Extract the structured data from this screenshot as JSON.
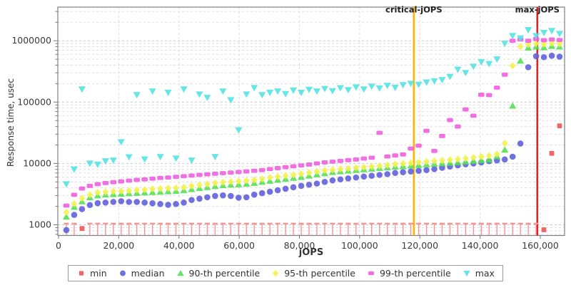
{
  "chart_data": {
    "type": "scatter",
    "xlabel": "jOPS",
    "ylabel": "Response time, usec",
    "y_scale": "log",
    "xlim": [
      0,
      168200
    ],
    "ylim": [
      670,
      3560000
    ],
    "grid": true,
    "legend_position": "bottom",
    "x_ticks": [
      {
        "value": 0,
        "label": "0"
      },
      {
        "value": 20000,
        "label": "20,000"
      },
      {
        "value": 40000,
        "label": "40,000"
      },
      {
        "value": 60000,
        "label": "60,000"
      },
      {
        "value": 80000,
        "label": "80,000"
      },
      {
        "value": 100000,
        "label": "100,000"
      },
      {
        "value": 120000,
        "label": "120,000"
      },
      {
        "value": 140000,
        "label": "140,000"
      },
      {
        "value": 160000,
        "label": "160,000"
      }
    ],
    "y_ticks": [
      {
        "value": 1000,
        "label": "1000"
      },
      {
        "value": 10000,
        "label": "10000"
      },
      {
        "value": 100000,
        "label": "100000"
      },
      {
        "value": 1000000,
        "label": "1000000"
      }
    ],
    "vlines": [
      {
        "name": "critical-jOPS",
        "x": 118000,
        "color": "#ffb400"
      },
      {
        "name": "max-jOPS",
        "x": 159000,
        "color": "#e42222"
      }
    ],
    "x": [
      2600,
      5200,
      7800,
      10400,
      13000,
      15600,
      18200,
      20800,
      23400,
      26000,
      28600,
      31200,
      33800,
      36400,
      39000,
      41600,
      44200,
      46800,
      49400,
      52000,
      54600,
      57200,
      59800,
      62400,
      65000,
      67600,
      70200,
      72800,
      75400,
      78000,
      80600,
      83200,
      85800,
      88400,
      91000,
      93600,
      96200,
      98800,
      101400,
      104000,
      106600,
      109200,
      111800,
      114400,
      117000,
      119600,
      122200,
      124800,
      127400,
      130000,
      132600,
      135200,
      137800,
      140400,
      143000,
      145600,
      148200,
      150800,
      153400,
      156000,
      158600,
      161200,
      163800,
      166400
    ],
    "series": [
      {
        "name": "min",
        "marker": "square",
        "color": "#ee5555",
        "values": [
          500,
          500,
          870,
          500,
          500,
          500,
          500,
          500,
          500,
          500,
          500,
          500,
          500,
          500,
          500,
          500,
          500,
          500,
          500,
          500,
          500,
          500,
          500,
          500,
          500,
          500,
          500,
          500,
          500,
          500,
          500,
          500,
          500,
          500,
          500,
          500,
          500,
          500,
          500,
          500,
          500,
          500,
          500,
          500,
          500,
          500,
          500,
          500,
          500,
          500,
          500,
          500,
          500,
          500,
          500,
          500,
          500,
          500,
          500,
          500,
          500,
          830,
          14600,
          41000
        ]
      },
      {
        "name": "median",
        "marker": "circle",
        "color": "#6161dd",
        "values": [
          820,
          1450,
          1800,
          2100,
          2250,
          2300,
          2360,
          2420,
          2360,
          2360,
          2300,
          2240,
          2180,
          2120,
          2180,
          2300,
          2540,
          2670,
          2810,
          2950,
          3020,
          2950,
          2770,
          2810,
          3100,
          3280,
          3460,
          3660,
          3870,
          4090,
          4320,
          4500,
          4700,
          5000,
          5300,
          5500,
          5700,
          5900,
          6100,
          6300,
          6500,
          6700,
          7000,
          7200,
          7400,
          7600,
          7800,
          8100,
          8500,
          8900,
          9300,
          9700,
          10000,
          10400,
          10900,
          11200,
          11600,
          12900,
          21100,
          370000,
          560000,
          540000,
          570000,
          550000
        ]
      },
      {
        "name": "90-th percentile",
        "marker": "triangle-up",
        "color": "#55e055",
        "values": [
          1350,
          1950,
          2400,
          2800,
          3000,
          3100,
          3150,
          3200,
          3250,
          3300,
          3350,
          3400,
          3450,
          3500,
          3550,
          3650,
          3800,
          3950,
          4100,
          4250,
          4400,
          4500,
          4550,
          4650,
          4800,
          5000,
          5200,
          5400,
          5600,
          5800,
          6000,
          6300,
          6600,
          6900,
          7200,
          7400,
          7600,
          7800,
          8000,
          8200,
          8400,
          8600,
          8800,
          9000,
          9200,
          9400,
          9600,
          9800,
          10000,
          10200,
          10400,
          10700,
          11000,
          11300,
          11600,
          13000,
          16700,
          87000,
          470000,
          770000,
          800000,
          780000,
          820000,
          800000
        ]
      },
      {
        "name": "95-th percentile",
        "marker": "diamond",
        "color": "#f2f24a",
        "values": [
          1600,
          2200,
          2700,
          3100,
          3350,
          3450,
          3500,
          3550,
          3600,
          3700,
          3750,
          3850,
          3900,
          3950,
          4000,
          4100,
          4300,
          4450,
          4600,
          4800,
          4950,
          5050,
          5150,
          5250,
          5400,
          5600,
          5900,
          6100,
          6300,
          6550,
          6800,
          7100,
          7400,
          7700,
          7900,
          8100,
          8300,
          8500,
          8700,
          8900,
          9100,
          9400,
          9700,
          10000,
          10200,
          10500,
          10700,
          11000,
          11200,
          11500,
          11800,
          12100,
          12500,
          12900,
          13400,
          14200,
          21200,
          390000,
          800000,
          870000,
          900000,
          880000,
          910000,
          890000
        ]
      },
      {
        "name": "99-th percentile",
        "marker": "hbar",
        "color": "#f05fe0",
        "values": [
          2060,
          3080,
          3900,
          4300,
          4600,
          4800,
          4950,
          5100,
          5250,
          5400,
          5500,
          5650,
          5800,
          5900,
          6050,
          6200,
          6350,
          6500,
          6650,
          6800,
          6950,
          7100,
          7250,
          7400,
          7600,
          7800,
          8100,
          8400,
          8700,
          9000,
          9300,
          9600,
          10000,
          10400,
          10700,
          11000,
          11300,
          11600,
          12000,
          12400,
          31600,
          13000,
          13500,
          14000,
          17500,
          19500,
          34000,
          16000,
          28000,
          51000,
          40000,
          76000,
          60000,
          132000,
          130000,
          172000,
          280000,
          1000000,
          1050000,
          1000000,
          1070000,
          1020000,
          1050000,
          1030000
        ]
      },
      {
        "name": "max",
        "marker": "triangle-down",
        "color": "#55e2e2",
        "values": [
          4600,
          8000,
          162000,
          10000,
          9600,
          10900,
          11200,
          22300,
          12700,
          131000,
          11700,
          150000,
          12800,
          143000,
          12100,
          162000,
          11200,
          134000,
          118000,
          12800,
          150000,
          108000,
          35000,
          134000,
          171000,
          131000,
          143000,
          150000,
          136000,
          155000,
          143000,
          160000,
          150000,
          165000,
          152000,
          170000,
          158000,
          175000,
          162000,
          180000,
          168000,
          185000,
          172000,
          190000,
          200000,
          193000,
          210000,
          220000,
          230000,
          260000,
          340000,
          300000,
          380000,
          450000,
          420000,
          500000,
          900000,
          1200000,
          1100000,
          1500000,
          1200000,
          1350000,
          1450000,
          1300000
        ]
      }
    ],
    "clipped_marker_color": "#f79494"
  }
}
